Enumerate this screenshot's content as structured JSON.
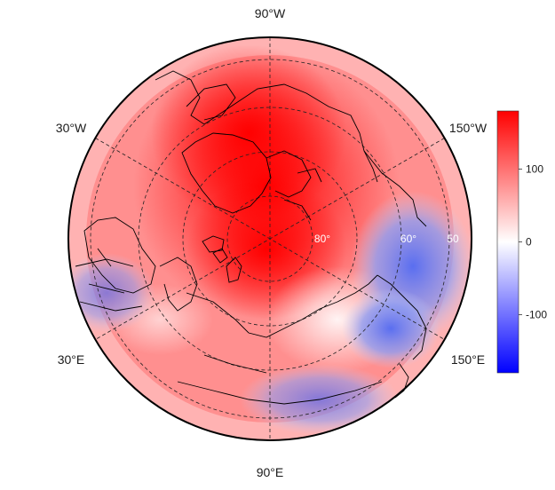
{
  "map": {
    "projection": "north-polar-stereographic",
    "longitude_labels": {
      "top": "90°W",
      "bottom": "90°E",
      "upper_left": "30°W",
      "upper_right": "150°W",
      "lower_left": "30°E",
      "lower_right": "150°E"
    },
    "latitude_labels": {
      "inner": "80°",
      "middle": "60°",
      "outer": "50"
    },
    "graticule": "dashed",
    "coastlines": true,
    "field_description": "diverging anomaly field: strong positive over pole, Greenland and Canadian Arctic; negative over eastern Siberia/Pacific sector and Scandinavia"
  },
  "colorbar": {
    "range": [
      -180,
      180
    ],
    "ticks": [
      {
        "value": 100,
        "label": "100"
      },
      {
        "value": 0,
        "label": "0"
      },
      {
        "value": -100,
        "label": "-100"
      }
    ],
    "colors": {
      "low": "#0000ff",
      "mid": "#ffffff",
      "high": "#ff0000"
    }
  }
}
